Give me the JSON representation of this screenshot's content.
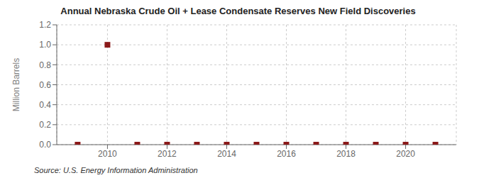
{
  "chart_data": {
    "type": "scatter",
    "title": "Annual Nebraska Crude Oil + Lease Condensate Reserves New Field Discoveries",
    "ylabel": "Million Barrels",
    "annotations": [
      "Source: U.S. Energy Information Administration"
    ],
    "x": [
      2009,
      2010,
      2011,
      2012,
      2013,
      2014,
      2015,
      2016,
      2017,
      2018,
      2019,
      2020,
      2021
    ],
    "values": [
      0.0,
      1.0,
      0.0,
      0.0,
      0.0,
      0.0,
      0.0,
      0.0,
      0.0,
      0.0,
      0.0,
      0.0,
      0.0
    ],
    "color": "#8b1a1a",
    "marker": "square",
    "xlim": [
      2008.3,
      2021.7
    ],
    "ylim": [
      0.0,
      1.2
    ],
    "xticks": [
      2010,
      2012,
      2014,
      2016,
      2018,
      2020
    ],
    "yticks": [
      {
        "value": 0.0,
        "label": "0.0"
      },
      0.2,
      0.4,
      0.6,
      0.8,
      {
        "value": 1.0,
        "label": "1.0"
      },
      1.2
    ],
    "grid": true
  }
}
